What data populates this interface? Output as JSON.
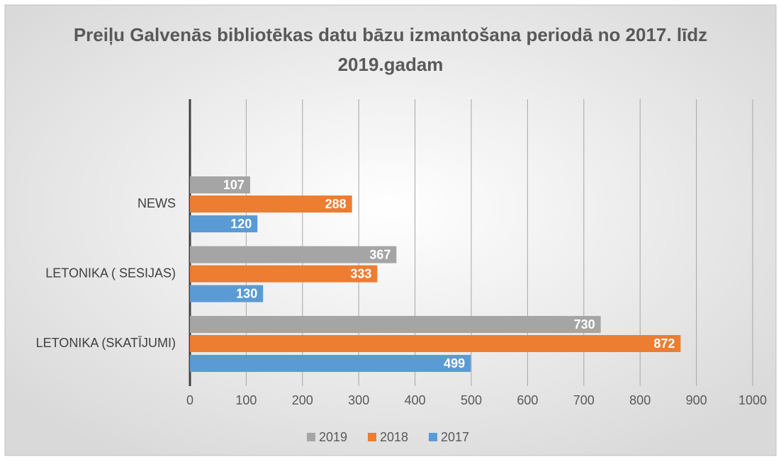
{
  "chart_data": {
    "type": "barh",
    "title": "Preiļu Galvenās bibliotēkas datu bāzu izmantošana periodā no 2017. līdz 2019.gadam",
    "categories": [
      "NEWS",
      "LETONIKA ( SESIJAS)",
      "LETONIKA (SKATĪJUMI)"
    ],
    "series": [
      {
        "name": "2019",
        "color": "#a5a5a5",
        "values": [
          107,
          367,
          730
        ]
      },
      {
        "name": "2018",
        "color": "#ed7d31",
        "values": [
          288,
          333,
          872
        ]
      },
      {
        "name": "2017",
        "color": "#5b9bd5",
        "values": [
          120,
          130,
          499
        ]
      }
    ],
    "xlim": [
      0,
      1000
    ],
    "xticks": [
      0,
      100,
      200,
      300,
      400,
      500,
      600,
      700,
      800,
      900,
      1000
    ],
    "grid": true,
    "legend": "bottom"
  }
}
